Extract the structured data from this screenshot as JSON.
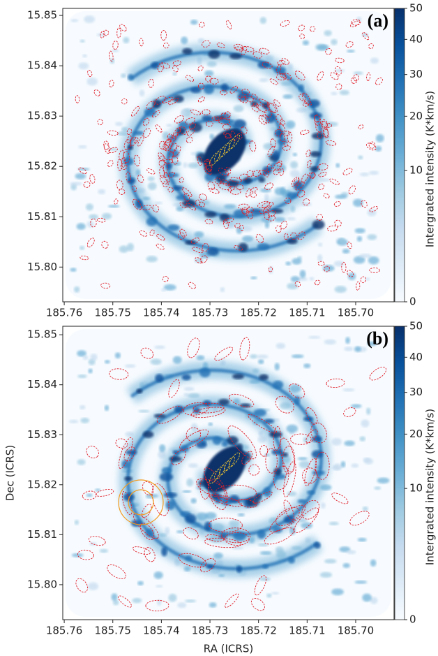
{
  "chart_data": [
    {
      "type": "image",
      "panel_label": "(a)",
      "xlim": [
        185.7603,
        185.6921
      ],
      "ylim": [
        15.7931,
        15.8514
      ],
      "xticks": [
        185.76,
        185.75,
        185.74,
        185.73,
        185.72,
        185.71,
        {
          "value": 185.7,
          "label": "185.70"
        }
      ],
      "yticks": [
        {
          "value": 15.8,
          "label": "15.80"
        },
        15.81,
        15.82,
        15.83,
        15.84,
        15.85
      ],
      "clim": [
        0,
        50
      ],
      "colorbar_scale": "sqrt",
      "colorbar_ticks": [
        0,
        10,
        20,
        30,
        40,
        50
      ],
      "colorbar_label": "Intergrated intensity (K*km/s)",
      "colormap": "Blues"
    },
    {
      "type": "image",
      "panel_label": "(b)",
      "xlabel": "RA (ICRS)",
      "ylabel": "Dec (ICRS)",
      "xlim": [
        185.7603,
        185.6921
      ],
      "ylim": [
        15.793,
        15.8517
      ],
      "xticks": [
        185.76,
        185.75,
        185.74,
        185.73,
        185.72,
        185.71,
        {
          "value": 185.7,
          "label": "185.70"
        }
      ],
      "yticks": [
        {
          "value": 15.8,
          "label": "15.80"
        },
        15.81,
        15.82,
        15.83,
        15.84,
        15.85
      ],
      "clim": [
        0,
        50
      ],
      "colorbar_scale": "sqrt",
      "colorbar_ticks": [
        0,
        10,
        20,
        30,
        40,
        50
      ],
      "colorbar_label": "Intergrated intensity (K*km/s)",
      "colormap": "Blues"
    }
  ]
}
